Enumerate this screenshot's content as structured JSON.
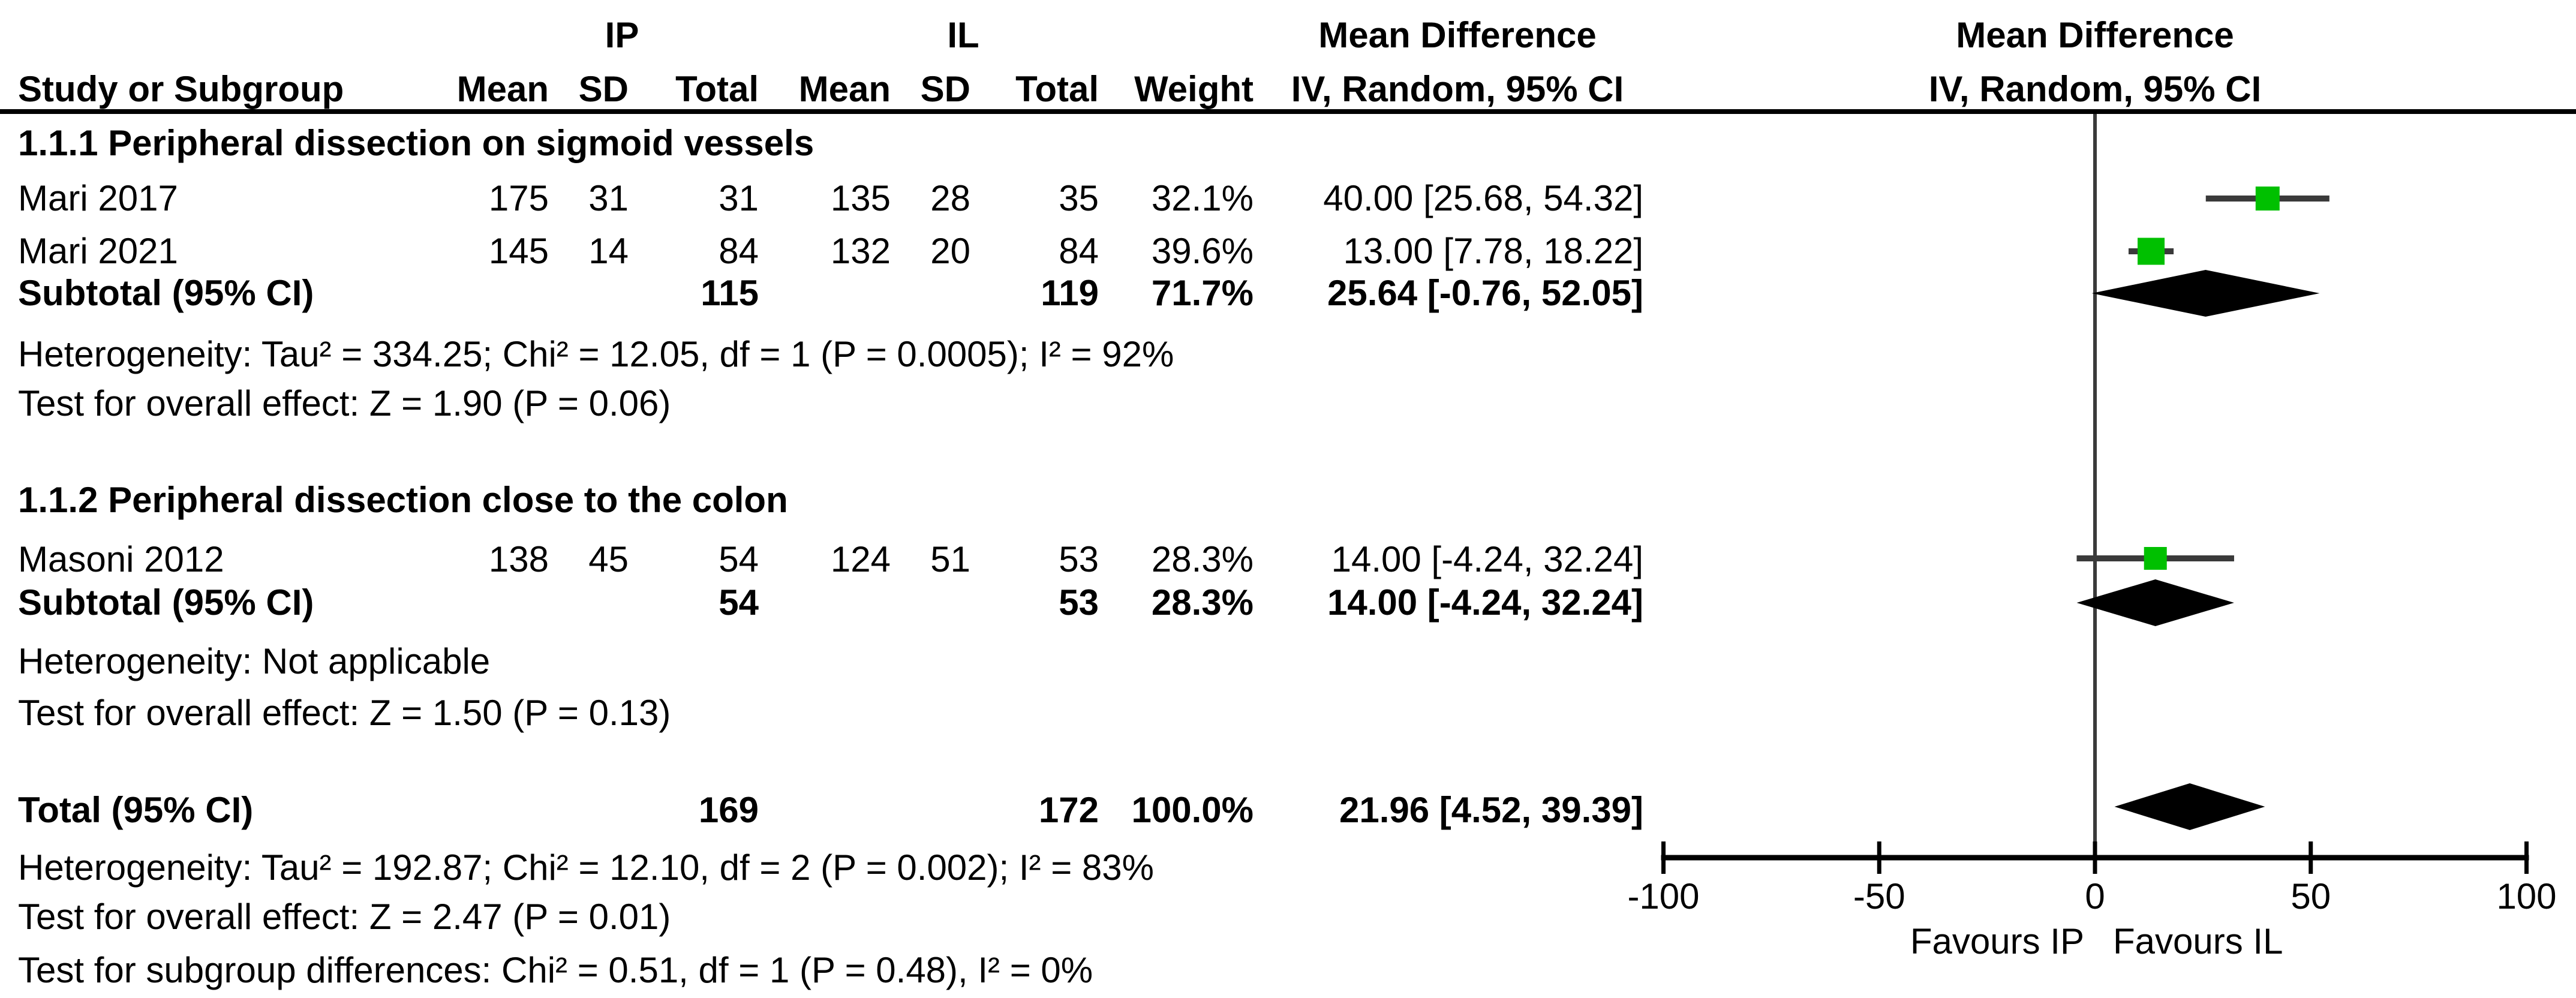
{
  "header": {
    "group1": "IP",
    "group2": "IL",
    "col_study": "Study or Subgroup",
    "col_mean": "Mean",
    "col_sd": "SD",
    "col_total": "Total",
    "col_weight": "Weight",
    "col_effect": "Mean Difference",
    "col_method": "IV, Random, 95% CI",
    "plot_title": "Mean Difference",
    "plot_subtitle": "IV, Random, 95% CI"
  },
  "sections": [
    {
      "heading": "1.1.1 Peripheral dissection on sigmoid vessels",
      "studies": [
        {
          "study": "Mari 2017",
          "mean1": "175",
          "sd1": "31",
          "total1": "31",
          "mean2": "135",
          "sd2": "28",
          "total2": "35",
          "weight": "32.1%",
          "ci": "40.00 [25.68, 54.32]"
        },
        {
          "study": "Mari 2021",
          "mean1": "145",
          "sd1": "14",
          "total1": "84",
          "mean2": "132",
          "sd2": "20",
          "total2": "84",
          "weight": "39.6%",
          "ci": "13.00 [7.78, 18.22]"
        }
      ],
      "subtotal": {
        "label": "Subtotal (95% CI)",
        "total1": "115",
        "total2": "119",
        "weight": "71.7%",
        "ci": "25.64 [-0.76, 52.05]"
      },
      "heterogeneity": "Heterogeneity: Tau² = 334.25; Chi² = 12.05, df = 1 (P = 0.0005); I² = 92%",
      "overall_effect": "Test for overall effect: Z = 1.90 (P = 0.06)"
    },
    {
      "heading": "1.1.2 Peripheral dissection close to the colon",
      "studies": [
        {
          "study": "Masoni 2012",
          "mean1": "138",
          "sd1": "45",
          "total1": "54",
          "mean2": "124",
          "sd2": "51",
          "total2": "53",
          "weight": "28.3%",
          "ci": "14.00 [-4.24, 32.24]"
        }
      ],
      "subtotal": {
        "label": "Subtotal (95% CI)",
        "total1": "54",
        "total2": "53",
        "weight": "28.3%",
        "ci": "14.00 [-4.24, 32.24]"
      },
      "heterogeneity": "Heterogeneity: Not applicable",
      "overall_effect": "Test for overall effect: Z = 1.50 (P = 0.13)"
    }
  ],
  "total": {
    "label": "Total (95% CI)",
    "total1": "169",
    "total2": "172",
    "weight": "100.0%",
    "ci": "21.96 [4.52, 39.39]",
    "heterogeneity": "Heterogeneity: Tau² = 192.87; Chi² = 12.10, df = 2 (P = 0.002); I² = 83%",
    "overall_effect": "Test for overall effect: Z = 2.47 (P = 0.01)",
    "subgroup_diff": "Test for subgroup differences: Chi² = 0.51, df = 1 (P = 0.48), I² = 0%"
  },
  "colors": {
    "square": "#00c000",
    "ci_line": "#3a3a3a",
    "diamond": "#000000",
    "axis": "#000000",
    "zero_line": "#3a3a3a"
  },
  "chart_data": {
    "type": "forest",
    "title": "Mean Difference",
    "effect_measure": "IV, Random, 95% CI",
    "xlim": [
      -100,
      100
    ],
    "x_ticks": [
      -100,
      -50,
      0,
      50,
      100
    ],
    "favours_left": "Favours IP",
    "favours_right": "Favours IL",
    "rows": [
      {
        "kind": "study",
        "label": "Mari 2017",
        "md": 40.0,
        "lo": 25.68,
        "hi": 54.32,
        "weight": 32.1
      },
      {
        "kind": "study",
        "label": "Mari 2021",
        "md": 13.0,
        "lo": 7.78,
        "hi": 18.22,
        "weight": 39.6
      },
      {
        "kind": "diamond",
        "label": "Subtotal (95% CI) 1.1.1",
        "md": 25.64,
        "lo": -0.76,
        "hi": 52.05
      },
      {
        "kind": "study",
        "label": "Masoni 2012",
        "md": 14.0,
        "lo": -4.24,
        "hi": 32.24,
        "weight": 28.3
      },
      {
        "kind": "diamond",
        "label": "Subtotal (95% CI) 1.1.2",
        "md": 14.0,
        "lo": -4.24,
        "hi": 32.24
      },
      {
        "kind": "diamond",
        "label": "Total (95% CI)",
        "md": 21.96,
        "lo": 4.52,
        "hi": 39.39
      }
    ]
  }
}
